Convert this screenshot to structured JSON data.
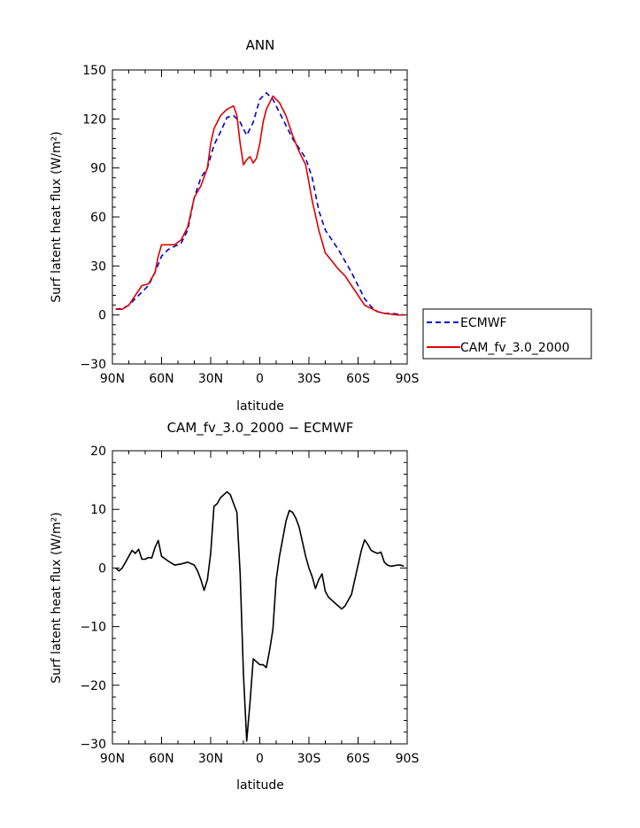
{
  "colors": {
    "ecmwf": "#0000cc",
    "cam": "#dd0000",
    "diff": "#000000"
  },
  "chart_data": [
    {
      "type": "line",
      "title": "ANN",
      "xlabel": "latitude",
      "ylabel": "Surf latent heat flux (W/m²)",
      "xlim": [
        90,
        -90
      ],
      "ylim": [
        -30,
        150
      ],
      "x_ticks": [
        90,
        60,
        30,
        0,
        -30,
        -60,
        -90
      ],
      "x_tick_labels": [
        "90N",
        "60N",
        "30N",
        "0",
        "30S",
        "60S",
        "90S"
      ],
      "y_ticks": [
        -30,
        0,
        30,
        60,
        90,
        120,
        150
      ],
      "y_tick_labels": [
        "−30",
        "0",
        "30",
        "60",
        "90",
        "120",
        "150"
      ],
      "legend": {
        "placement": "right",
        "entries": [
          "ECMWF",
          "CAM_fv_3.0_2000"
        ]
      },
      "series": [
        {
          "name": "ECMWF",
          "style": "dashed",
          "x": [
            88,
            84,
            80,
            76,
            72,
            68,
            64,
            60,
            56,
            52,
            48,
            44,
            40,
            36,
            32,
            28,
            24,
            20,
            16,
            12,
            8,
            4,
            0,
            -4,
            -8,
            -12,
            -16,
            -20,
            -24,
            -28,
            -32,
            -36,
            -40,
            -44,
            -48,
            -52,
            -56,
            -60,
            -64,
            -68,
            -72,
            -76,
            -80,
            -84,
            -88
          ],
          "values": [
            3.5,
            4,
            6,
            10,
            14,
            18,
            26,
            36,
            40,
            42,
            44,
            52,
            72,
            84,
            90,
            104,
            112,
            121,
            122,
            118,
            110,
            118,
            132,
            136,
            132,
            124,
            116,
            108,
            102,
            96,
            84,
            64,
            52,
            46,
            40,
            33,
            26,
            18,
            10,
            5,
            2,
            1,
            1,
            0.5,
            0
          ]
        },
        {
          "name": "CAM_fv_3.0_2000",
          "style": "solid",
          "x": [
            88,
            84,
            80,
            76,
            72,
            68,
            64,
            62,
            60,
            56,
            52,
            48,
            44,
            40,
            36,
            32,
            30,
            28,
            24,
            20,
            16,
            14,
            12,
            10,
            8,
            6,
            4,
            2,
            0,
            -2,
            -4,
            -8,
            -12,
            -16,
            -20,
            -24,
            -28,
            -32,
            -36,
            -40,
            -44,
            -48,
            -52,
            -56,
            -60,
            -64,
            -68,
            -72,
            -76,
            -80,
            -84,
            -88
          ],
          "values": [
            3.5,
            3.5,
            6,
            12,
            18,
            19,
            26,
            36,
            43,
            43,
            43,
            46,
            54,
            72,
            79,
            90,
            105,
            114,
            122,
            126,
            128,
            122,
            105,
            92,
            95,
            97,
            93,
            96,
            105,
            118,
            126,
            134,
            130,
            122,
            110,
            100,
            92,
            70,
            52,
            38,
            33,
            28,
            24,
            18,
            12,
            6,
            4,
            2,
            1,
            0.5,
            0,
            0
          ]
        }
      ]
    },
    {
      "type": "line",
      "title": "CAM_fv_3.0_2000 − ECMWF",
      "xlabel": "latitude",
      "ylabel": "Surf latent heat flux (W/m²)",
      "xlim": [
        90,
        -90
      ],
      "ylim": [
        -30,
        20
      ],
      "x_ticks": [
        90,
        60,
        30,
        0,
        -30,
        -60,
        -90
      ],
      "x_tick_labels": [
        "90N",
        "60N",
        "30N",
        "0",
        "30S",
        "60S",
        "90S"
      ],
      "y_ticks": [
        -30,
        -20,
        -10,
        0,
        10,
        20
      ],
      "y_tick_labels": [
        "−30",
        "−20",
        "−10",
        "0",
        "10",
        "20"
      ],
      "series": [
        {
          "style": "solid",
          "x": [
            88,
            86,
            84,
            82,
            80,
            78,
            76,
            74,
            72,
            70,
            68,
            66,
            64,
            62,
            60,
            56,
            52,
            48,
            44,
            40,
            38,
            36,
            34,
            32,
            30,
            28,
            26,
            24,
            22,
            20,
            18,
            16,
            14,
            12,
            10,
            8,
            6,
            4,
            2,
            0,
            -2,
            -4,
            -6,
            -8,
            -10,
            -12,
            -14,
            -16,
            -18,
            -20,
            -22,
            -24,
            -26,
            -28,
            -30,
            -32,
            -34,
            -36,
            -38,
            -40,
            -42,
            -44,
            -46,
            -48,
            -50,
            -52,
            -54,
            -56,
            -58,
            -60,
            -62,
            -64,
            -66,
            -68,
            -70,
            -72,
            -74,
            -76,
            -78,
            -80,
            -82,
            -84,
            -86,
            -88
          ],
          "values": [
            0,
            -0.5,
            0,
            1,
            2,
            3,
            2.5,
            3.2,
            1.5,
            1.5,
            1.8,
            1.7,
            3.5,
            4.7,
            2,
            1.2,
            0.5,
            0.7,
            1,
            0.5,
            -0.5,
            -2,
            -3.8,
            -2,
            2.5,
            10.5,
            11,
            12,
            12.5,
            13,
            12.5,
            11,
            9.5,
            -1,
            -18,
            -29.5,
            -23,
            -15.5,
            -16,
            -16.5,
            -16.5,
            -17,
            -14,
            -10.5,
            -2,
            2,
            5,
            8,
            9.8,
            9.5,
            8.5,
            7,
            4.5,
            2,
            0,
            -1.5,
            -3.5,
            -2,
            -1,
            -4,
            -5,
            -5.5,
            -6,
            -6.5,
            -7,
            -6.5,
            -5.5,
            -4.5,
            -2,
            0.5,
            3,
            4.8,
            4,
            3,
            2.7,
            2.5,
            2.7,
            1,
            0.5,
            0.3,
            0.4,
            0.5,
            0.5,
            0.3
          ]
        }
      ]
    }
  ]
}
